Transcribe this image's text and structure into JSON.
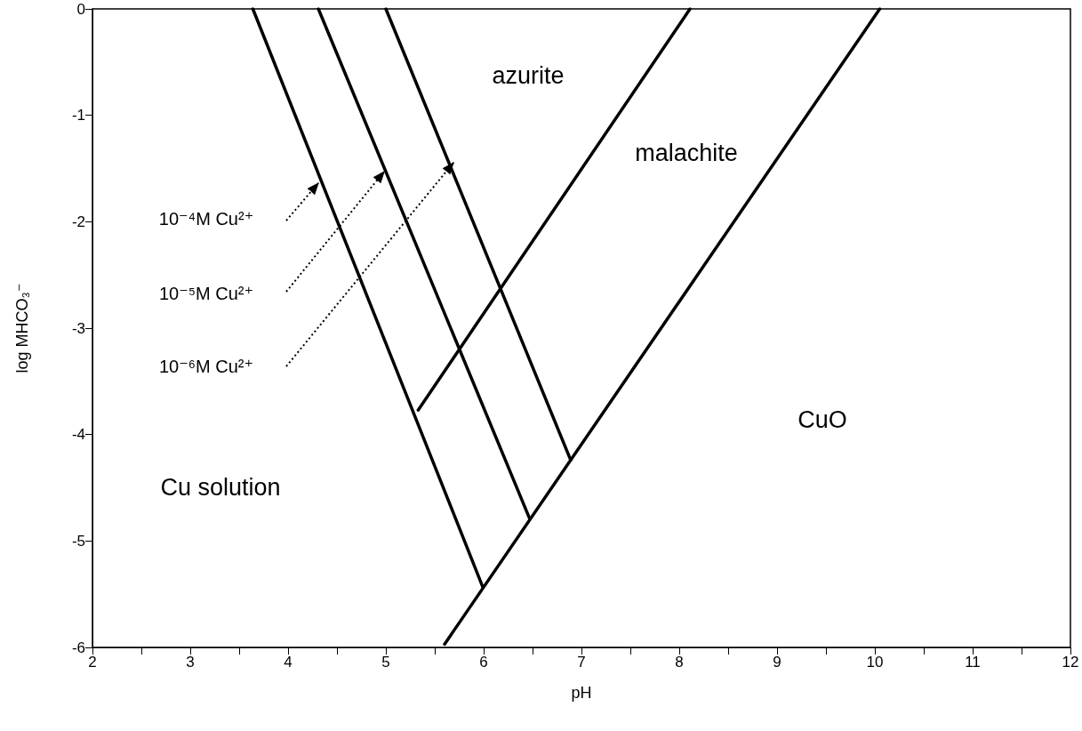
{
  "chart_data": {
    "type": "line",
    "xlabel": "pH",
    "ylabel": "log MHCO₃⁻",
    "xlim": [
      2,
      12
    ],
    "ylim": [
      -6,
      0
    ],
    "xticks": [
      2,
      {
        "value": 2.5,
        "label": null
      },
      3,
      {
        "value": 3.5,
        "label": null
      },
      4,
      {
        "value": 4.5,
        "label": null
      },
      5,
      {
        "value": 5.5,
        "label": null
      },
      6,
      {
        "value": 6.5,
        "label": null
      },
      7,
      {
        "value": 7.5,
        "label": null
      },
      8,
      {
        "value": 8.5,
        "label": null
      },
      9,
      {
        "value": 9.5,
        "label": null
      },
      10,
      {
        "value": 10.5,
        "label": null
      },
      11,
      {
        "value": 11.5,
        "label": null
      },
      12
    ],
    "yticks": [
      -6,
      -5,
      -4,
      -3,
      -2,
      -1,
      0
    ],
    "grid": false,
    "marker": "none",
    "series": [
      {
        "x": [
          3.64,
          5.99
        ],
        "values": [
          0,
          -5.43
        ],
        "color": "#000000",
        "line_style": "solid"
      },
      {
        "x": [
          4.31,
          6.47
        ],
        "values": [
          0,
          -4.79
        ],
        "color": "#000000",
        "line_style": "solid"
      },
      {
        "x": [
          5.0,
          6.89
        ],
        "values": [
          0,
          -4.24
        ],
        "color": "#000000",
        "line_style": "solid"
      },
      {
        "x": [
          5.33,
          8.11
        ],
        "values": [
          -3.77,
          0
        ],
        "color": "#000000",
        "line_style": "solid"
      },
      {
        "x": [
          5.6,
          10.05
        ],
        "values": [
          -5.97,
          0
        ],
        "color": "#000000",
        "line_style": "solid"
      }
    ],
    "annotations": [
      "azurite",
      "malachite",
      "CuO",
      "Cu solution",
      "10⁻⁴M Cu²⁺",
      "10⁻⁵M Cu²⁺",
      "10⁻⁶M Cu²⁺"
    ]
  }
}
